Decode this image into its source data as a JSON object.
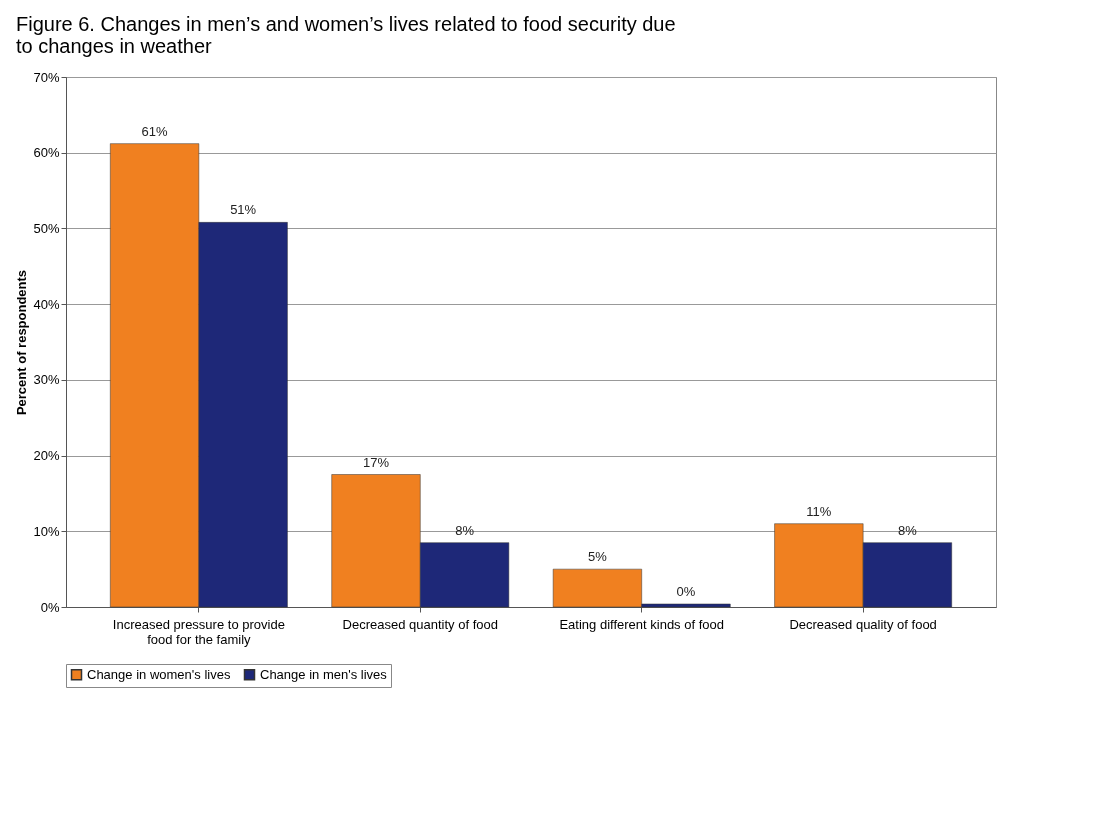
{
  "chart_data": {
    "type": "bar",
    "title": "Figure 6. Changes in men’s and women’s lives related to food security due to changes in weather",
    "ylabel": "Percent of respondents",
    "categories": [
      "Increased pressure to provide food for the family",
      "Decreased quantity of food",
      "Eating different kinds of food",
      "Decreased quality of food"
    ],
    "series": [
      {
        "name": "Change in women's lives",
        "color": "#f08020",
        "values": [
          61.2,
          17.5,
          5,
          11
        ],
        "value_labels": [
          "61%",
          "17%",
          "5%",
          "11%"
        ]
      },
      {
        "name": "Change in men's lives",
        "color": "#1e2878",
        "values": [
          50.8,
          8.5,
          0.4,
          8.5
        ],
        "value_labels": [
          "51%",
          "8%",
          "0%",
          "8%"
        ]
      }
    ],
    "ylim": [
      0,
      70
    ],
    "yticks": [
      {
        "value": 0,
        "label": "0%"
      },
      {
        "value": 10,
        "label": "10%"
      },
      {
        "value": 20,
        "label": "20%"
      },
      {
        "value": 30,
        "label": "30%"
      },
      {
        "value": 40,
        "label": "40%"
      },
      {
        "value": 50,
        "label": "50%"
      },
      {
        "value": 60,
        "label": "60%"
      },
      {
        "value": 70,
        "label": "70%"
      }
    ],
    "grid": "y",
    "legend": "bottom"
  }
}
